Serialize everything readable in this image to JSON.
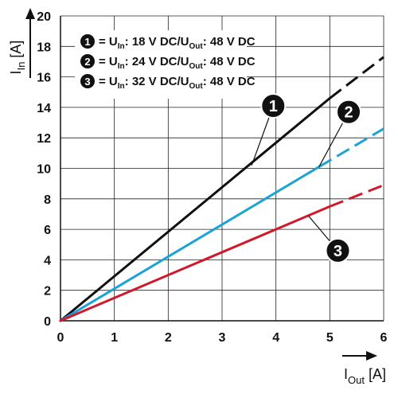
{
  "chart_data": {
    "type": "line",
    "xlabel": {
      "main": "I",
      "sub": "Out",
      "unit": "[A]"
    },
    "ylabel": {
      "main": "I",
      "sub": "In",
      "unit": "[A]"
    },
    "xlim": [
      0,
      6
    ],
    "ylim": [
      0,
      20
    ],
    "x_ticks": [
      "0",
      "1",
      "2",
      "3",
      "4",
      "5",
      "6"
    ],
    "y_ticks": [
      "0",
      "2",
      "4",
      "6",
      "8",
      "10",
      "12",
      "14",
      "16",
      "18",
      "20"
    ],
    "grid": true,
    "legend_position": "top-left",
    "series": [
      {
        "id": "1",
        "color": "#111111",
        "legend": {
          "prefix": "= U",
          "sub1": "In",
          "mid": ": 18 V DC/U",
          "sub2": "Out",
          "suffix": ": 48 V DC"
        },
        "solid": [
          [
            0,
            0
          ],
          [
            5,
            14.6
          ]
        ],
        "dashed": [
          [
            5,
            14.6
          ],
          [
            6,
            17.3
          ]
        ]
      },
      {
        "id": "2",
        "color": "#1ba3d6",
        "legend": {
          "prefix": "= U",
          "sub1": "In",
          "mid": ": 24 V DC/U",
          "sub2": "Out",
          "suffix": ": 48 V DC"
        },
        "solid": [
          [
            0,
            0
          ],
          [
            4.8,
            10.1
          ]
        ],
        "dashed": [
          [
            4.8,
            10.1
          ],
          [
            6,
            12.6
          ]
        ]
      },
      {
        "id": "3",
        "color": "#d0192b",
        "legend": {
          "prefix": "= U",
          "sub1": "In",
          "mid": ": 32 V DC/U",
          "sub2": "Out",
          "suffix": ": 48 V DC"
        },
        "solid": [
          [
            0,
            0
          ],
          [
            5,
            7.5
          ]
        ],
        "dashed": [
          [
            5,
            7.5
          ],
          [
            6,
            8.9
          ]
        ]
      }
    ],
    "annotations": [
      {
        "label": "1",
        "at": [
          3.95,
          14.1
        ],
        "points_to": [
          3.55,
          10.2
        ]
      },
      {
        "label": "2",
        "at": [
          5.35,
          13.7
        ],
        "points_to": [
          4.8,
          10.1
        ]
      },
      {
        "label": "3",
        "at": [
          5.15,
          4.6
        ],
        "points_to": [
          4.6,
          6.9
        ]
      }
    ]
  }
}
